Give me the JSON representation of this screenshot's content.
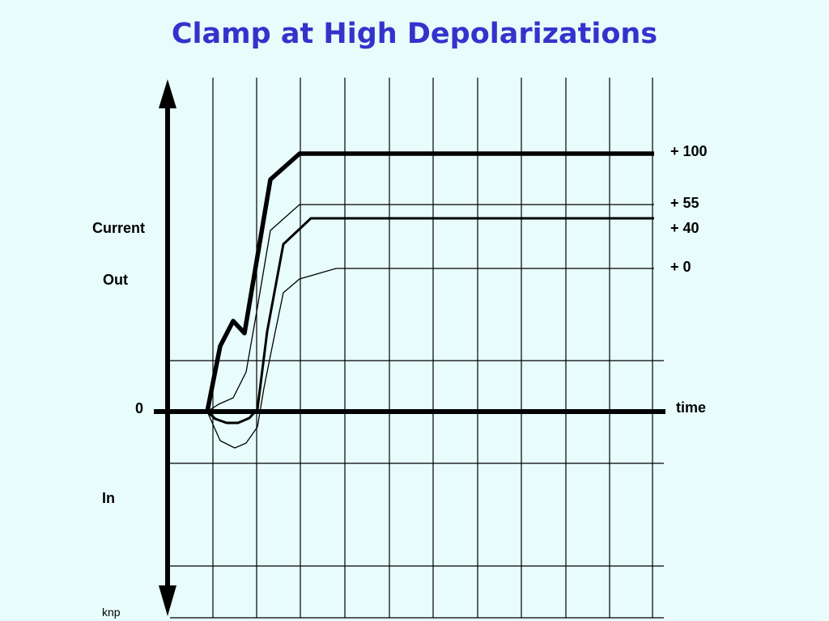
{
  "title": "Clamp at High Depolarizations",
  "labels": {
    "current": "Current",
    "out": "Out",
    "zero": "0",
    "in": "In",
    "time": "time",
    "author": "knp"
  },
  "curves": [
    {
      "label": "+ 100",
      "style": "thick"
    },
    {
      "label": "+ 55",
      "style": "thin"
    },
    {
      "label": "+ 40",
      "style": "medium"
    },
    {
      "label": "+ 0",
      "style": "thin"
    }
  ],
  "colors": {
    "background": "#e8fdfb",
    "title": "#3333cc",
    "lines": "#000000"
  }
}
